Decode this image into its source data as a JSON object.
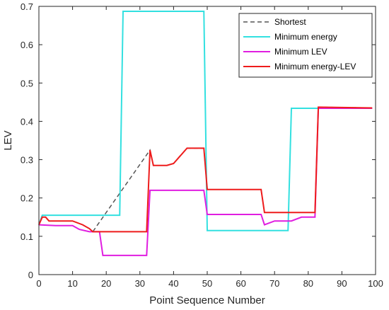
{
  "chart_data": {
    "type": "line",
    "title": "",
    "xlabel": "Point Sequence Number",
    "ylabel": "LEV",
    "xlim": [
      0,
      100
    ],
    "ylim": [
      0,
      0.7
    ],
    "xticks": [
      0,
      10,
      20,
      30,
      40,
      50,
      60,
      70,
      80,
      90,
      100
    ],
    "yticks": [
      0,
      0.1,
      0.2,
      0.3,
      0.4,
      0.5,
      0.6,
      0.7
    ],
    "grid": false,
    "legend_position": "top-right",
    "series": [
      {
        "name": "Shortest",
        "color": "#555555",
        "dash": "dashed",
        "step": true,
        "x": [
          0,
          1,
          2,
          3,
          4,
          5,
          10,
          13,
          15,
          16,
          33,
          34,
          38,
          40,
          44,
          49,
          50,
          66,
          67,
          82,
          83,
          99
        ],
        "y": [
          0.13,
          0.15,
          0.15,
          0.14,
          0.14,
          0.14,
          0.14,
          0.13,
          0.12,
          0.112,
          0.325,
          0.285,
          0.285,
          0.29,
          0.33,
          0.33,
          0.222,
          0.222,
          0.162,
          0.162,
          0.437,
          0.435
        ]
      },
      {
        "name": "Minimum energy",
        "color": "#33e0e0",
        "dash": "solid",
        "step": true,
        "x": [
          0,
          1,
          24,
          25,
          49,
          50,
          74,
          75,
          99
        ],
        "y": [
          0.13,
          0.155,
          0.155,
          0.687,
          0.687,
          0.115,
          0.115,
          0.434,
          0.434
        ]
      },
      {
        "name": "Minimum LEV",
        "color": "#e01ee0",
        "dash": "solid",
        "step": true,
        "x": [
          0,
          5,
          10,
          12,
          15,
          18,
          19,
          32,
          33,
          49,
          50,
          66,
          67,
          70,
          75,
          78,
          82,
          83,
          99
        ],
        "y": [
          0.13,
          0.128,
          0.128,
          0.118,
          0.112,
          0.112,
          0.05,
          0.05,
          0.22,
          0.22,
          0.157,
          0.157,
          0.13,
          0.14,
          0.14,
          0.15,
          0.15,
          0.434,
          0.434
        ]
      },
      {
        "name": "Minimum energy-LEV",
        "color": "#ee1c1c",
        "dash": "solid",
        "step": true,
        "x": [
          0,
          1,
          2,
          3,
          4,
          5,
          10,
          13,
          15,
          16,
          32,
          33,
          34,
          38,
          40,
          44,
          49,
          50,
          66,
          67,
          82,
          83,
          99
        ],
        "y": [
          0.13,
          0.15,
          0.15,
          0.14,
          0.14,
          0.14,
          0.14,
          0.13,
          0.12,
          0.112,
          0.112,
          0.325,
          0.285,
          0.285,
          0.29,
          0.33,
          0.33,
          0.222,
          0.222,
          0.162,
          0.162,
          0.437,
          0.435
        ]
      }
    ]
  }
}
